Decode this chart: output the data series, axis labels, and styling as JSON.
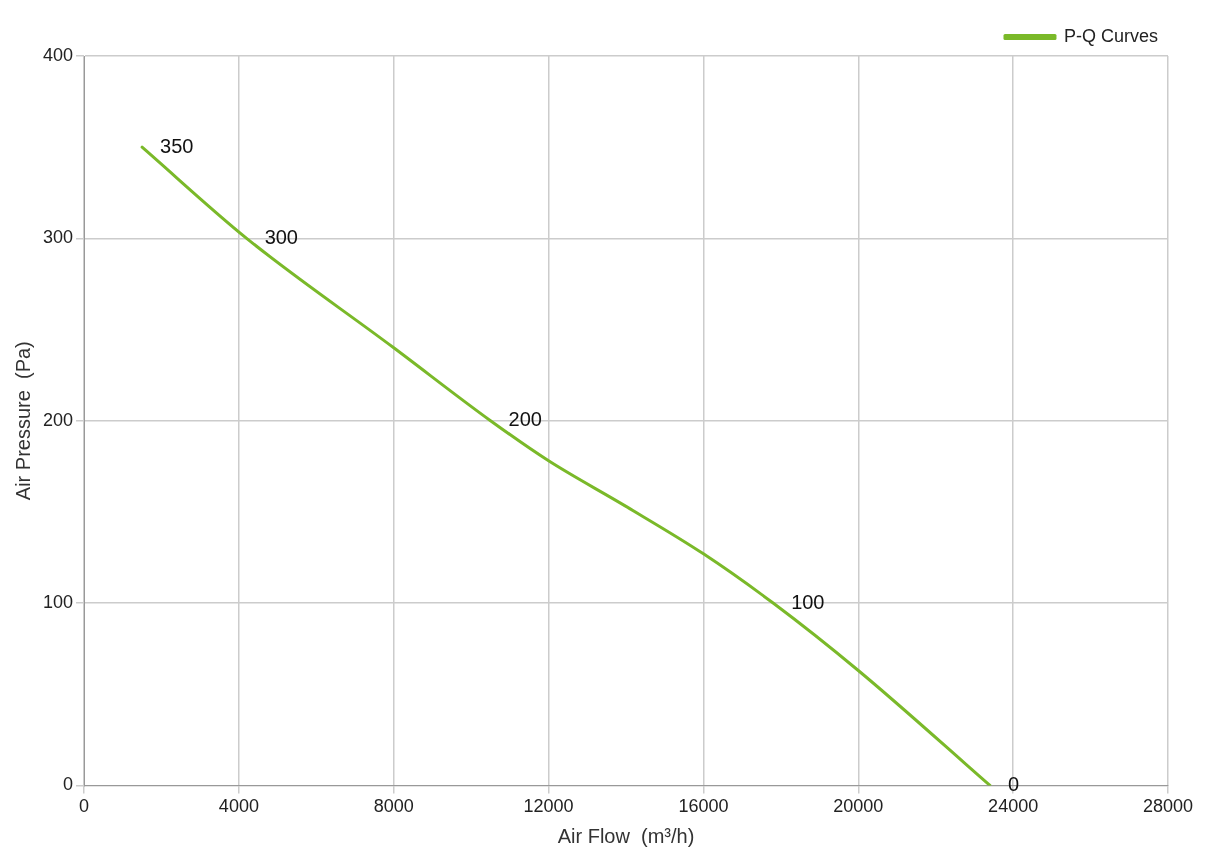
{
  "chart_data": {
    "type": "line",
    "xlabel": "Air Flow  (m³/h)",
    "ylabel": "Air Pressure  (Pa)",
    "x": [
      1500,
      4200,
      8000,
      10500,
      12000,
      14000,
      16000,
      17800,
      20000,
      23400
    ],
    "series": [
      {
        "name": "P-Q Curves",
        "color": "#7ab929",
        "values": [
          350,
          300,
          240,
          200,
          178,
          153,
          127,
          100,
          63,
          0
        ],
        "value_labels": [
          "350",
          "300",
          null,
          "200",
          null,
          null,
          null,
          "100",
          null,
          "0"
        ]
      }
    ],
    "xlim": [
      0,
      28000
    ],
    "xticks": [
      0,
      4000,
      8000,
      12000,
      16000,
      20000,
      24000,
      28000
    ],
    "ylim": [
      0,
      400
    ],
    "yticks": [
      0,
      100,
      200,
      300,
      400
    ],
    "grid": true,
    "legend": "top right",
    "marker": "none",
    "line_style": "solid"
  }
}
